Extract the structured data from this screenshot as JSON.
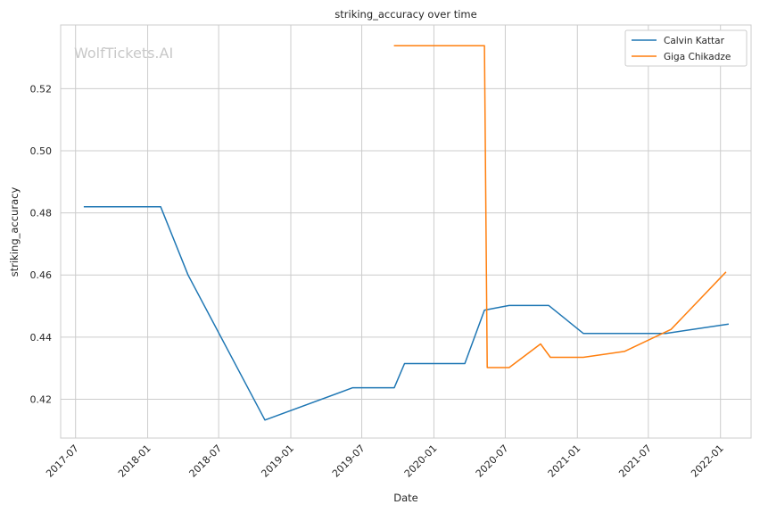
{
  "chart_data": {
    "type": "line",
    "title": "striking_accuracy over time",
    "xlabel": "Date",
    "ylabel": "striking_accuracy",
    "watermark": "WolfTickets.AI",
    "x_ticks": [
      "2017-07",
      "2018-01",
      "2018-07",
      "2019-01",
      "2019-07",
      "2020-01",
      "2020-07",
      "2021-01",
      "2021-07",
      "2022-01"
    ],
    "y_ticks": [
      "0.42",
      "0.44",
      "0.46",
      "0.48",
      "0.50",
      "0.52"
    ],
    "xlim": [
      "2017-05-24",
      "2022-03-20"
    ],
    "ylim": [
      0.4075,
      0.5405
    ],
    "grid": true,
    "legend": "top-right",
    "series": [
      {
        "name": "Calvin Kattar",
        "color": "#1f77b4",
        "points": [
          [
            "2017-07-22",
            0.482
          ],
          [
            "2018-02-03",
            0.482
          ],
          [
            "2018-04-14",
            0.46
          ],
          [
            "2018-10-27",
            0.4133
          ],
          [
            "2019-06-08",
            0.4237
          ],
          [
            "2019-09-22",
            0.4237
          ],
          [
            "2019-10-18",
            0.4315
          ],
          [
            "2020-03-20",
            0.4315
          ],
          [
            "2020-05-09",
            0.4487
          ],
          [
            "2020-07-11",
            0.4502
          ],
          [
            "2020-10-20",
            0.4502
          ],
          [
            "2021-01-16",
            0.4412
          ],
          [
            "2021-08-14",
            0.4412
          ],
          [
            "2022-01-22",
            0.4442
          ]
        ]
      },
      {
        "name": "Giga Chikadze",
        "color": "#ff7f0e",
        "points": [
          [
            "2019-09-21",
            0.5338
          ],
          [
            "2020-05-09",
            0.5338
          ],
          [
            "2020-05-16",
            0.4302
          ],
          [
            "2020-07-11",
            0.4302
          ],
          [
            "2020-09-29",
            0.4378
          ],
          [
            "2020-10-24",
            0.4335
          ],
          [
            "2021-01-16",
            0.4335
          ],
          [
            "2021-05-01",
            0.4354
          ],
          [
            "2021-08-28",
            0.4425
          ],
          [
            "2022-01-15",
            0.461
          ]
        ]
      }
    ]
  }
}
